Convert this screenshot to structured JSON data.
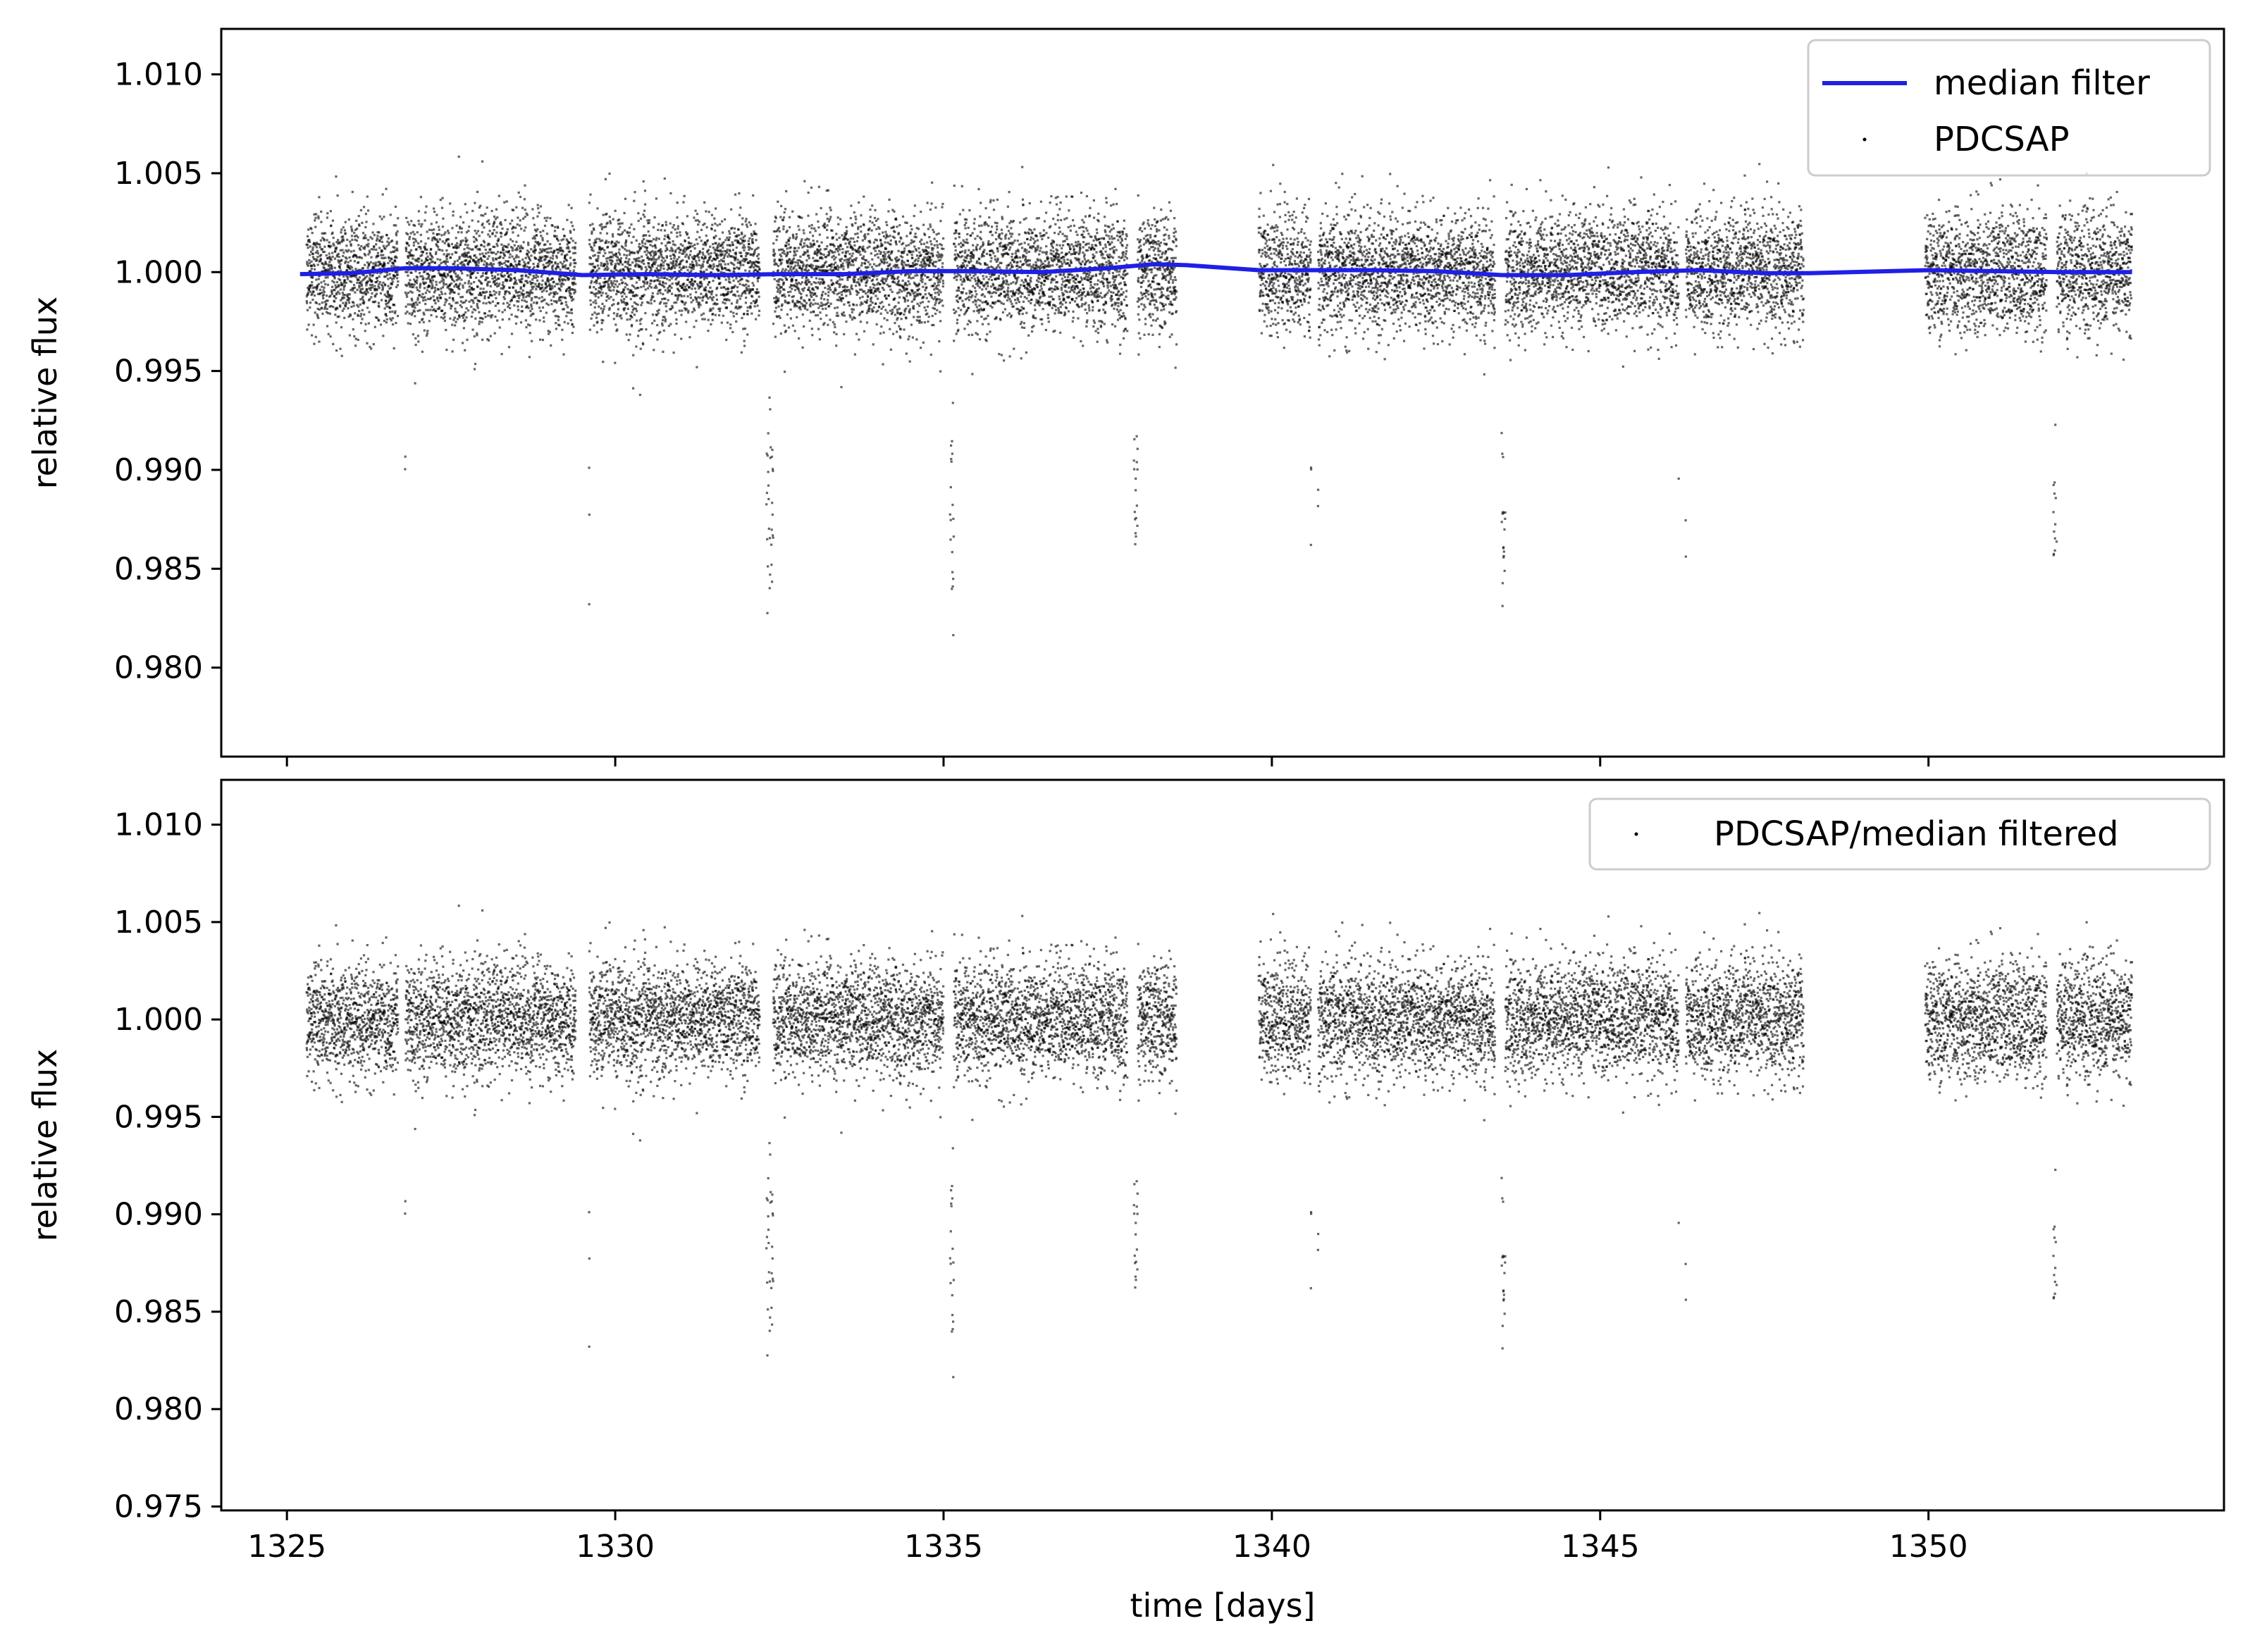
{
  "chart_data": [
    {
      "type": "scatter",
      "panel": "top",
      "title": "",
      "xlabel": "",
      "ylabel": "relative flux",
      "xlim": [
        1324.0,
        1354.5
      ],
      "ylim": [
        0.9755,
        1.0123
      ],
      "x_ticks": [
        1325,
        1330,
        1335,
        1340,
        1345,
        1350
      ],
      "x_tick_labels_visible": false,
      "y_ticks": [
        0.98,
        0.985,
        0.99,
        0.995,
        1.0,
        1.005,
        1.01
      ],
      "y_tick_labels": [
        "0.980",
        "0.985",
        "0.990",
        "0.995",
        "1.000",
        "1.005",
        "1.010"
      ],
      "grid": false,
      "legend_position": "top-right",
      "colors": {
        "line": "#1f1fe6",
        "points": "#000000"
      },
      "series": [
        {
          "name": "median filter",
          "kind": "line",
          "segments": [
            [
              [
                1325.2,
                0.9999
              ],
              [
                1326.0,
                0.99995
              ],
              [
                1326.8,
                1.0002
              ],
              [
                1327.5,
                1.0002
              ],
              [
                1328.5,
                1.0001
              ],
              [
                1329.5,
                0.99985
              ],
              [
                1330.5,
                0.9999
              ],
              [
                1331.5,
                0.99985
              ],
              [
                1332.5,
                0.9999
              ],
              [
                1333.5,
                0.9999
              ],
              [
                1334.5,
                1.00005
              ],
              [
                1335.5,
                1.00005
              ],
              [
                1336.5,
                1.0
              ],
              [
                1337.5,
                1.0002
              ],
              [
                1338.2,
                1.0004
              ],
              [
                1338.7,
                1.00035
              ],
              [
                1339.8,
                1.0001
              ],
              [
                1340.5,
                1.0001
              ],
              [
                1341.5,
                1.0001
              ],
              [
                1342.5,
                1.00005
              ],
              [
                1343.5,
                0.99985
              ],
              [
                1344.5,
                0.99985
              ],
              [
                1345.5,
                1.0
              ],
              [
                1346.5,
                1.0001
              ],
              [
                1347.5,
                0.99995
              ],
              [
                1348.2,
                0.99995
              ],
              [
                1350.0,
                1.0001
              ],
              [
                1351.0,
                1.00005
              ],
              [
                1352.0,
                1.0
              ],
              [
                1353.1,
                1.0
              ]
            ]
          ]
        },
        {
          "name": "PDCSAP",
          "kind": "points",
          "baseline": 1.0,
          "scatter_sigma": 0.0015,
          "segments": [
            [
              1325.3,
              1326.7
            ],
            [
              1326.8,
              1329.4
            ],
            [
              1329.6,
              1332.2
            ],
            [
              1332.3,
              1335.0
            ],
            [
              1335.1,
              1337.8
            ],
            [
              1337.9,
              1338.55
            ],
            [
              1339.8,
              1340.6
            ],
            [
              1340.7,
              1343.4
            ],
            [
              1343.5,
              1346.2
            ],
            [
              1346.3,
              1348.1
            ],
            [
              1349.95,
              1351.8
            ],
            [
              1351.9,
              1353.1
            ]
          ],
          "transit_times": [
            1326.75,
            1329.55,
            1332.35,
            1335.1,
            1337.9,
            1340.65,
            1343.5,
            1346.25,
            1351.9
          ],
          "transit_depth": 0.0155,
          "points_shown": "approximately 18,000 points; only their distribution is recorded"
        }
      ]
    },
    {
      "type": "scatter",
      "panel": "bottom",
      "title": "",
      "xlabel": "time [days]",
      "ylabel": "relative flux",
      "xlim": [
        1324.0,
        1354.5
      ],
      "ylim": [
        0.9748,
        1.0123
      ],
      "x_ticks": [
        1325,
        1330,
        1335,
        1340,
        1345,
        1350
      ],
      "x_tick_labels": [
        "1325",
        "1330",
        "1335",
        "1340",
        "1345",
        "1350"
      ],
      "y_ticks": [
        0.975,
        0.98,
        0.985,
        0.99,
        0.995,
        1.0,
        1.005,
        1.01
      ],
      "y_tick_labels": [
        "0.975",
        "0.980",
        "0.985",
        "0.990",
        "0.995",
        "1.000",
        "1.005",
        "1.010"
      ],
      "grid": false,
      "legend_position": "top-right",
      "colors": {
        "points": "#000000"
      },
      "series": [
        {
          "name": "PDCSAP/median filtered",
          "kind": "points",
          "baseline": 1.0,
          "scatter_sigma": 0.0015,
          "segments": [
            [
              1325.3,
              1326.7
            ],
            [
              1326.8,
              1329.4
            ],
            [
              1329.6,
              1332.2
            ],
            [
              1332.3,
              1335.0
            ],
            [
              1335.1,
              1337.8
            ],
            [
              1337.9,
              1338.55
            ],
            [
              1339.8,
              1340.6
            ],
            [
              1340.7,
              1343.4
            ],
            [
              1343.5,
              1346.2
            ],
            [
              1346.3,
              1348.1
            ],
            [
              1349.95,
              1351.8
            ],
            [
              1351.9,
              1353.1
            ]
          ],
          "transit_times": [
            1326.75,
            1329.55,
            1332.35,
            1335.1,
            1337.9,
            1340.65,
            1343.5,
            1346.25,
            1351.9
          ],
          "transit_depth": 0.0155,
          "points_shown": "approximately 18,000 points; only their distribution is recorded"
        }
      ]
    }
  ]
}
